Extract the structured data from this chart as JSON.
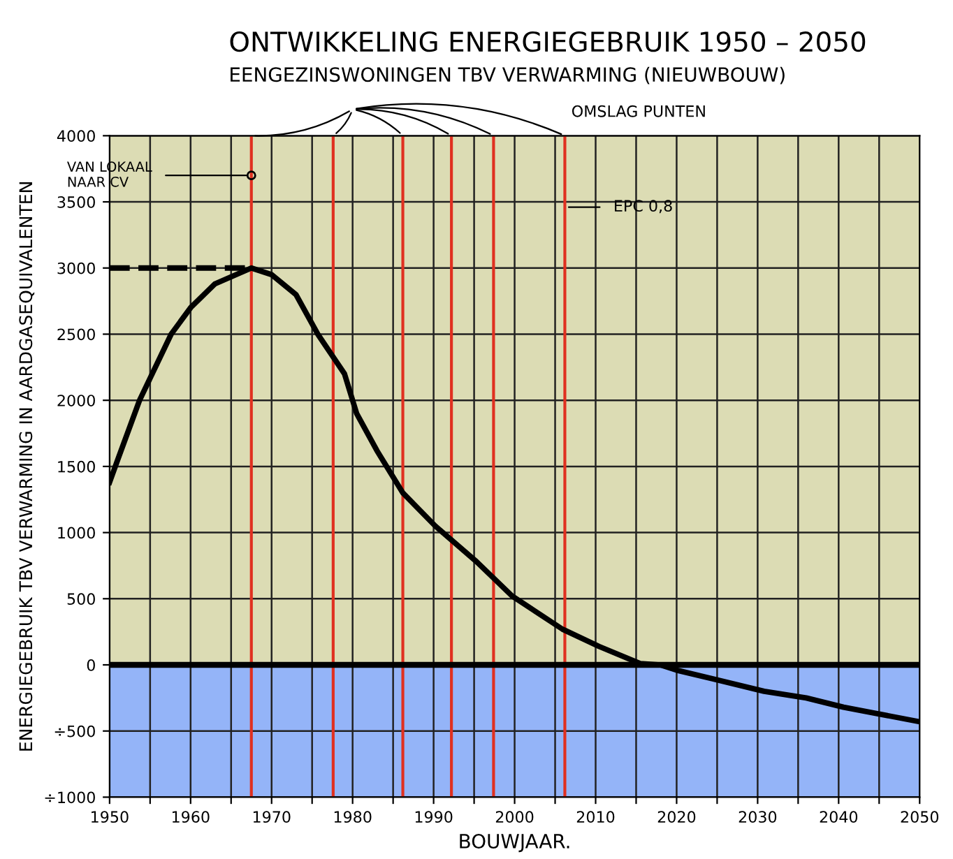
{
  "chart_data": {
    "type": "line",
    "title": "ONTWIKKELING ENERGIEGEBRUIK 1950 – 2050",
    "subtitle": "EENGEZINSWONINGEN TBV VERWARMING (NIEUWBOUW)",
    "xlabel": "BOUWJAAR.",
    "ylabel": "ENERGIEGEBRUIK TBV VERWARMING IN AARDGASEQUIVALENTEN",
    "series": [
      {
        "color": "#000000",
        "line_style": "solid",
        "x": [
          1950,
          1951,
          1953.7,
          1957.6,
          1960,
          1963,
          1967.5,
          1970,
          1973,
          1975.7,
          1979,
          1980.5,
          1983,
          1986.2,
          1990.2,
          1995.3,
          1999.7,
          2005.9,
          2010.4,
          2015.5,
          2018,
          2020,
          2030.8,
          2036,
          2040.6,
          2050
        ],
        "values": [
          1380,
          1550,
          2000,
          2500,
          2700,
          2880,
          3000,
          2950,
          2800,
          2500,
          2200,
          1900,
          1620,
          1300,
          1050,
          780,
          520,
          270,
          140,
          10,
          0,
          -40,
          -200,
          -250,
          -320,
          -430
        ]
      },
      {
        "color": "#000000",
        "line_style": "dashed",
        "x": [
          1950,
          1967.5
        ],
        "values": [
          3000,
          3000
        ]
      }
    ],
    "xlim": [
      1950,
      2050
    ],
    "ylim": [
      -1000,
      4000
    ],
    "xticks": [
      1950,
      {
        "value": 1955,
        "label": null
      },
      1960,
      {
        "value": 1965,
        "label": null
      },
      1970,
      {
        "value": 1975,
        "label": null
      },
      1980,
      {
        "value": 1985,
        "label": null
      },
      1990,
      {
        "value": 1995,
        "label": null
      },
      2000,
      {
        "value": 2005,
        "label": null
      },
      2010,
      {
        "value": 2015,
        "label": null
      },
      2020,
      {
        "value": 2025,
        "label": null
      },
      2030,
      {
        "value": 2035,
        "label": null
      },
      2040,
      {
        "value": 2045,
        "label": null
      },
      2050
    ],
    "yticks": [
      {
        "value": -1000,
        "label": "÷1000"
      },
      {
        "value": -500,
        "label": "÷500"
      },
      0,
      500,
      1000,
      1500,
      2000,
      2500,
      3000,
      3500,
      4000
    ],
    "grid": true,
    "bands": [
      {
        "axis": "y",
        "from": 0,
        "to": 4000,
        "color": "#dcdcb4"
      },
      {
        "axis": "y",
        "from": -1000,
        "to": 0,
        "color": "#94b4f8"
      }
    ],
    "ref_lines": [
      {
        "axis": "y",
        "value": 0,
        "color": "#000000"
      },
      {
        "axis": "x",
        "value": 1967.5,
        "color": "#e03020"
      },
      {
        "axis": "x",
        "value": 1977.6,
        "color": "#e03020"
      },
      {
        "axis": "x",
        "value": 1986.2,
        "color": "#e03020"
      },
      {
        "axis": "x",
        "value": 1992.2,
        "color": "#e03020"
      },
      {
        "axis": "x",
        "value": 1997.4,
        "color": "#e03020"
      },
      {
        "axis": "x",
        "value": 2006.2,
        "color": "#e03020",
        "label": "EPC 0,8"
      }
    ],
    "annotations": [
      {
        "text": "VAN LOKAAL\nNAAR CV",
        "x": 1967.5,
        "y": 3700
      },
      "OMSLAG PUNTEN"
    ]
  }
}
